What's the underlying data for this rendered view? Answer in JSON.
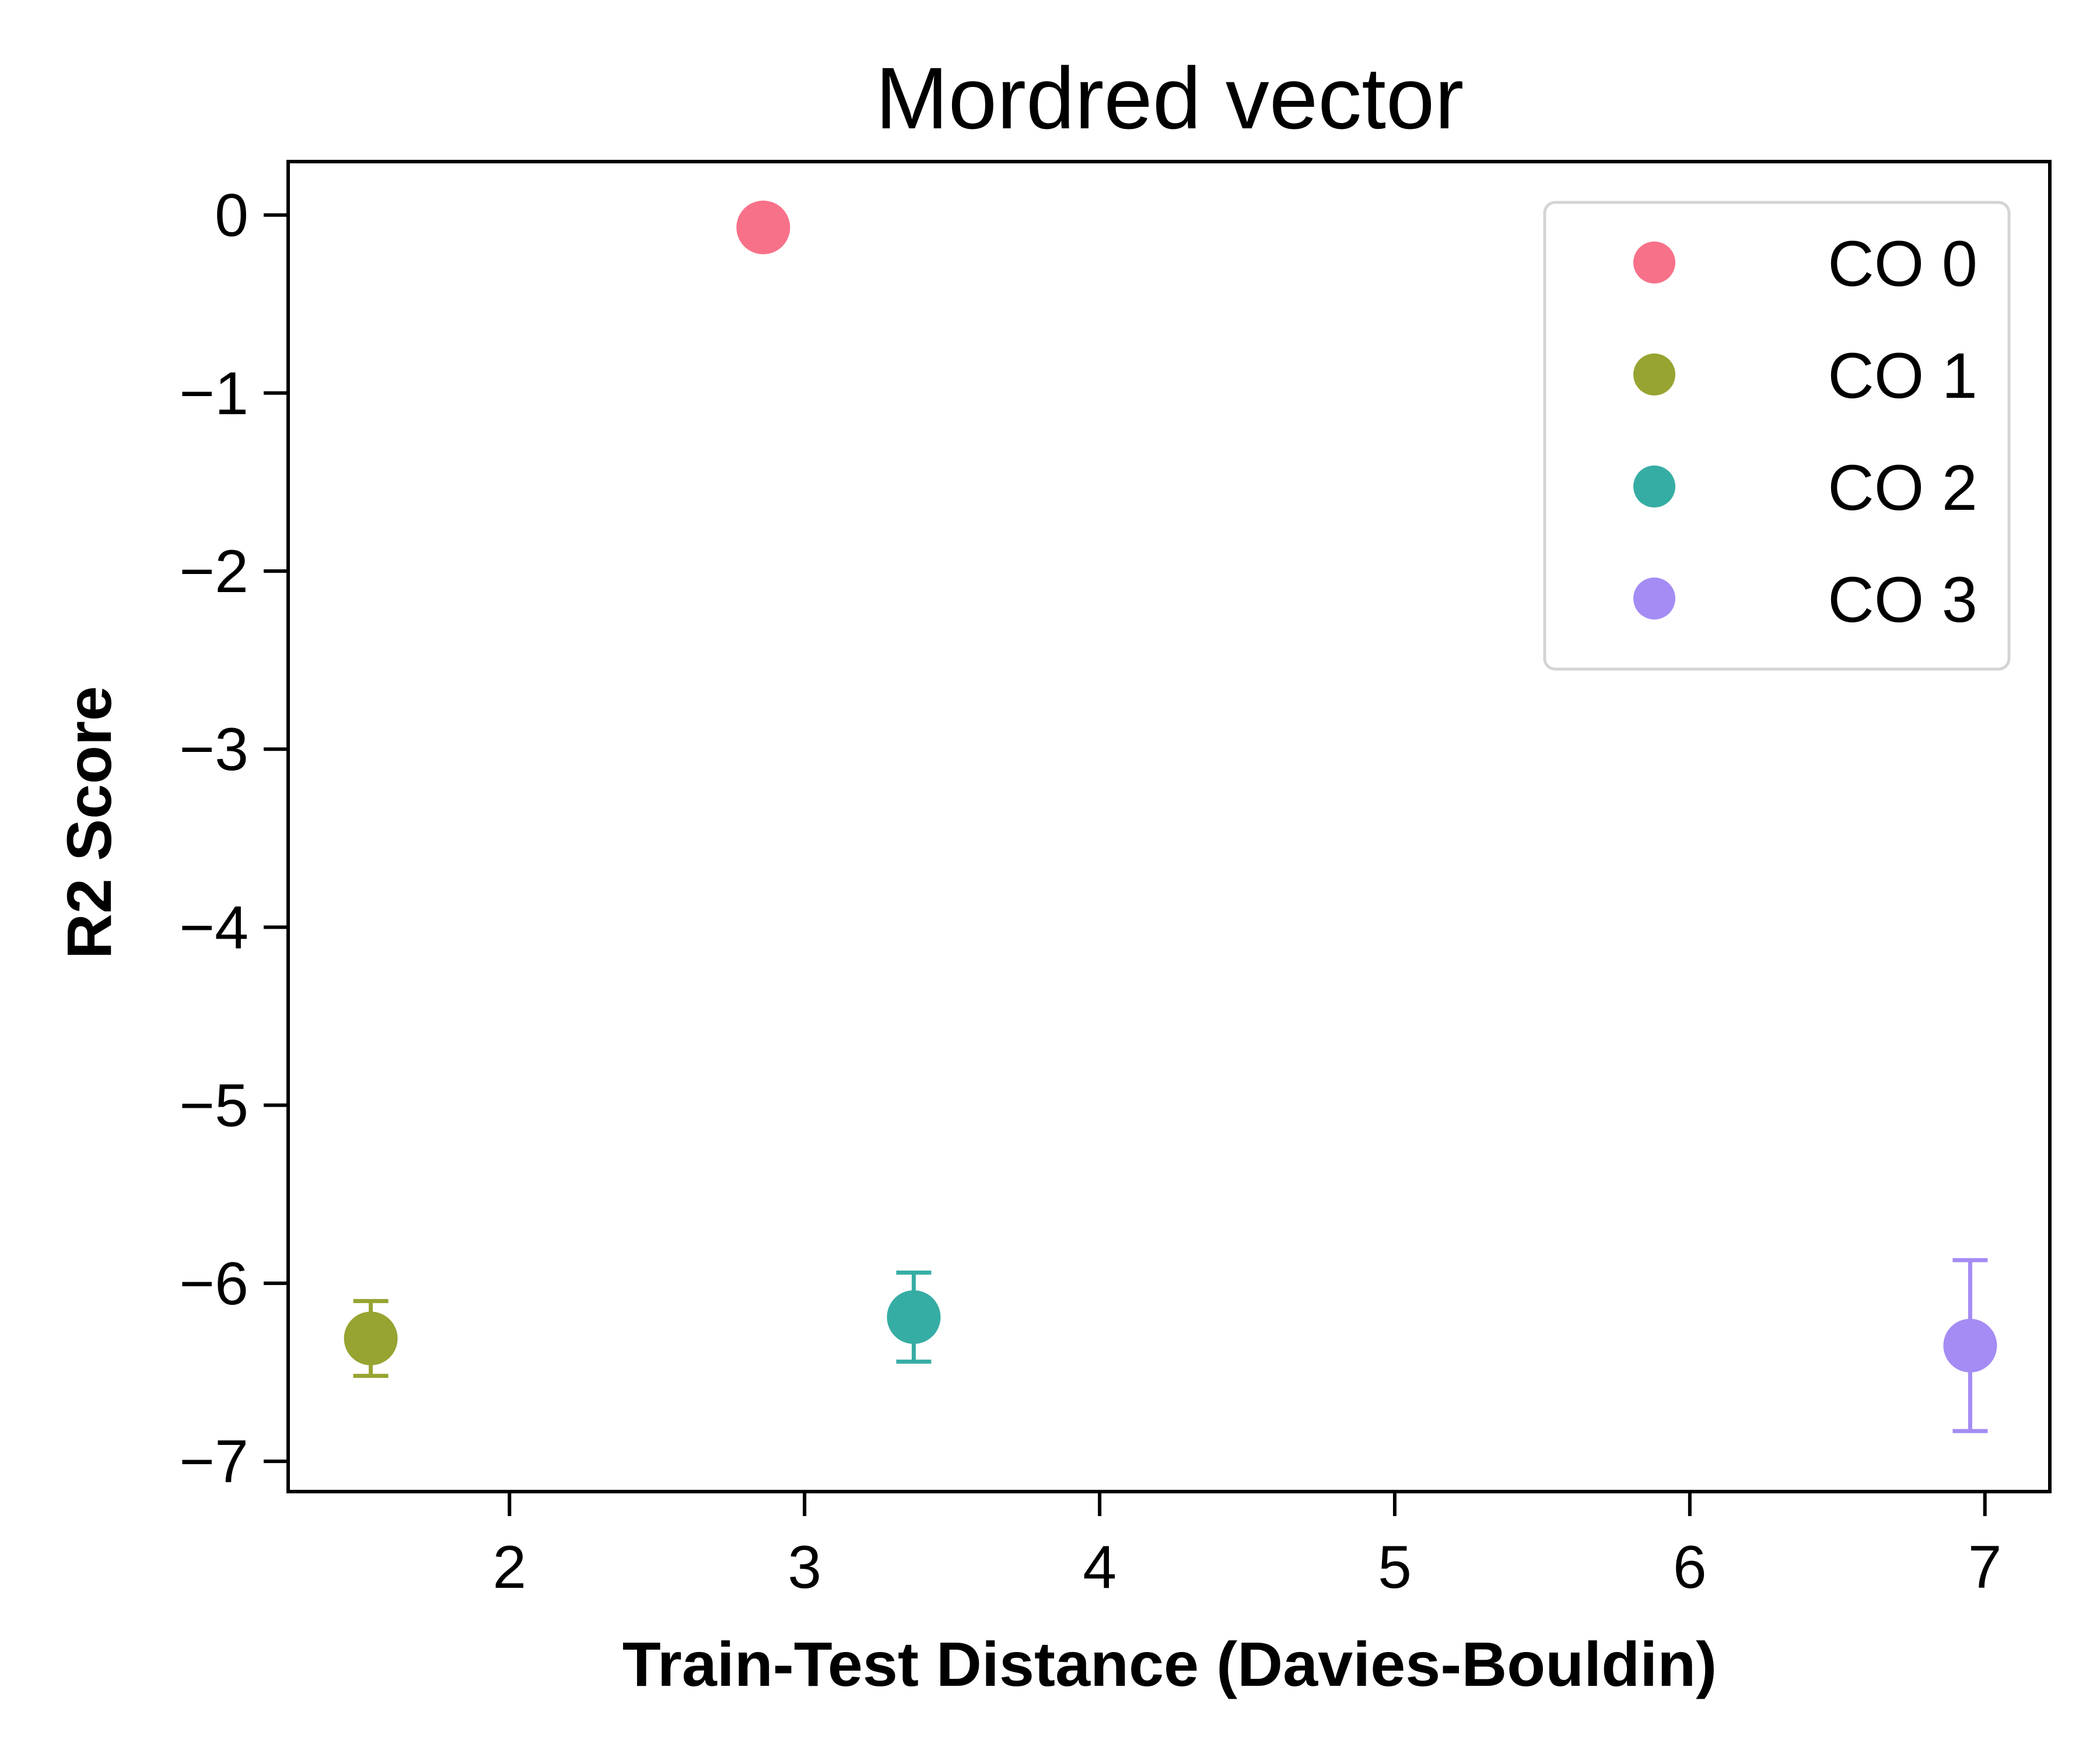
{
  "chart_data": {
    "type": "scatter",
    "title": "Mordred vector",
    "xlabel": "Train-Test Distance (Davies-Bouldin)",
    "ylabel": "R2 Score",
    "xlim": [
      1.25,
      7.22
    ],
    "ylim": [
      -7.17,
      0.3
    ],
    "x_ticks": [
      2,
      3,
      4,
      5,
      6,
      7
    ],
    "x_tick_labels": [
      "2",
      "3",
      "4",
      "5",
      "6",
      "7"
    ],
    "y_ticks": [
      0,
      -1,
      -2,
      -3,
      -4,
      -5,
      -6,
      -7
    ],
    "y_tick_labels": [
      "0",
      "−1",
      "−2",
      "−3",
      "−4",
      "−5",
      "−6",
      "−7"
    ],
    "grid": false,
    "legend_position": "top-right",
    "series": [
      {
        "name": "CO 0",
        "color": "#f77189",
        "x": 2.86,
        "y": -0.07,
        "err": 0.0
      },
      {
        "name": "CO 1",
        "color": "#97a431",
        "x": 1.53,
        "y": -6.31,
        "err": 0.21
      },
      {
        "name": "CO 2",
        "color": "#36ada4",
        "x": 3.37,
        "y": -6.19,
        "err": 0.25
      },
      {
        "name": "CO 3",
        "color": "#a48cf4",
        "x": 6.95,
        "y": -6.35,
        "err": 0.48
      }
    ]
  }
}
